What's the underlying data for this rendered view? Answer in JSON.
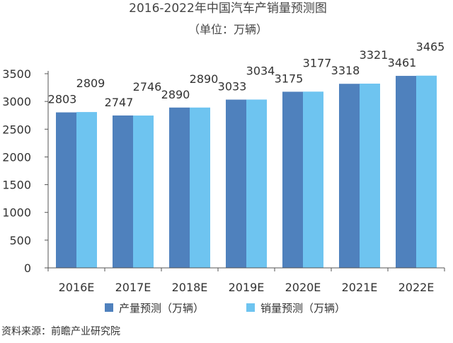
{
  "chart_data": {
    "type": "bar",
    "title": "2016-2022年中国汽车产销量预测图",
    "subtitle": "（单位：万辆）",
    "categories": [
      "2016E",
      "2017E",
      "2018E",
      "2019E",
      "2020E",
      "2021E",
      "2022E"
    ],
    "series": [
      {
        "name": "产量预测（万辆）",
        "color": "#4f81bd",
        "values": [
          2803,
          2747,
          2890,
          3033,
          3175,
          3318,
          3461
        ]
      },
      {
        "name": "销量预测（万辆）",
        "color": "#6ec4f0",
        "values": [
          2809,
          2746,
          2890,
          3034,
          3177,
          3321,
          3465
        ]
      }
    ],
    "y_ticks": [
      0,
      500,
      1000,
      1500,
      2000,
      2500,
      3000,
      3500
    ],
    "ylim": [
      0,
      3500
    ],
    "grid": false,
    "legend_position": "bottom",
    "source_note": "资料来源：前瞻产业研究院"
  }
}
